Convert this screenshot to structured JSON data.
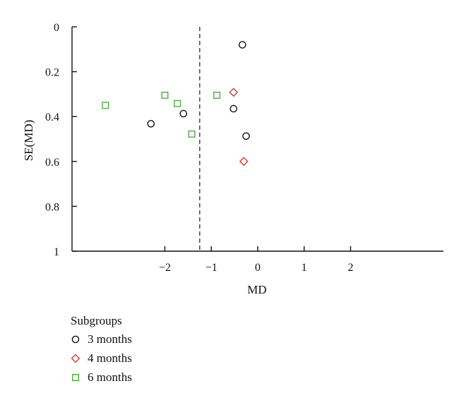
{
  "chart_data": {
    "type": "scatter",
    "xlabel": "MD",
    "ylabel": "SE(MD)",
    "xlim": [
      -4,
      4
    ],
    "ylim": [
      1,
      0
    ],
    "y_reversed": true,
    "x_ticks": [
      -2,
      -1,
      0,
      1,
      2
    ],
    "x_tick_labels": [
      "−2",
      "−1",
      "0",
      "1",
      "2"
    ],
    "y_ticks": [
      0,
      0.2,
      0.4,
      0.6,
      0.8,
      1
    ],
    "y_tick_labels": [
      "0",
      "0.2",
      "0.4",
      "0.6",
      "0.8",
      "1"
    ],
    "grid": false,
    "reference_line": {
      "x": -1.25,
      "style": "dashed",
      "color": "#3a3a9a"
    },
    "legend": {
      "title": "Subgroups",
      "placement": "bottom-left"
    },
    "series": [
      {
        "name": "3 months",
        "marker": "circle",
        "color": "#111111",
        "points": [
          {
            "x": -0.33,
            "y": 0.08
          },
          {
            "x": -0.52,
            "y": 0.365
          },
          {
            "x": -0.25,
            "y": 0.487
          },
          {
            "x": -1.6,
            "y": 0.387
          },
          {
            "x": -2.3,
            "y": 0.432
          }
        ]
      },
      {
        "name": "4 months",
        "marker": "diamond",
        "color": "#d0402a",
        "points": [
          {
            "x": -0.52,
            "y": 0.292
          },
          {
            "x": -0.3,
            "y": 0.6
          }
        ]
      },
      {
        "name": "6 months",
        "marker": "square",
        "color": "#4caf3a",
        "points": [
          {
            "x": -3.28,
            "y": 0.35
          },
          {
            "x": -2.0,
            "y": 0.305
          },
          {
            "x": -1.73,
            "y": 0.342
          },
          {
            "x": -1.42,
            "y": 0.478
          },
          {
            "x": -0.88,
            "y": 0.305
          }
        ]
      }
    ]
  }
}
